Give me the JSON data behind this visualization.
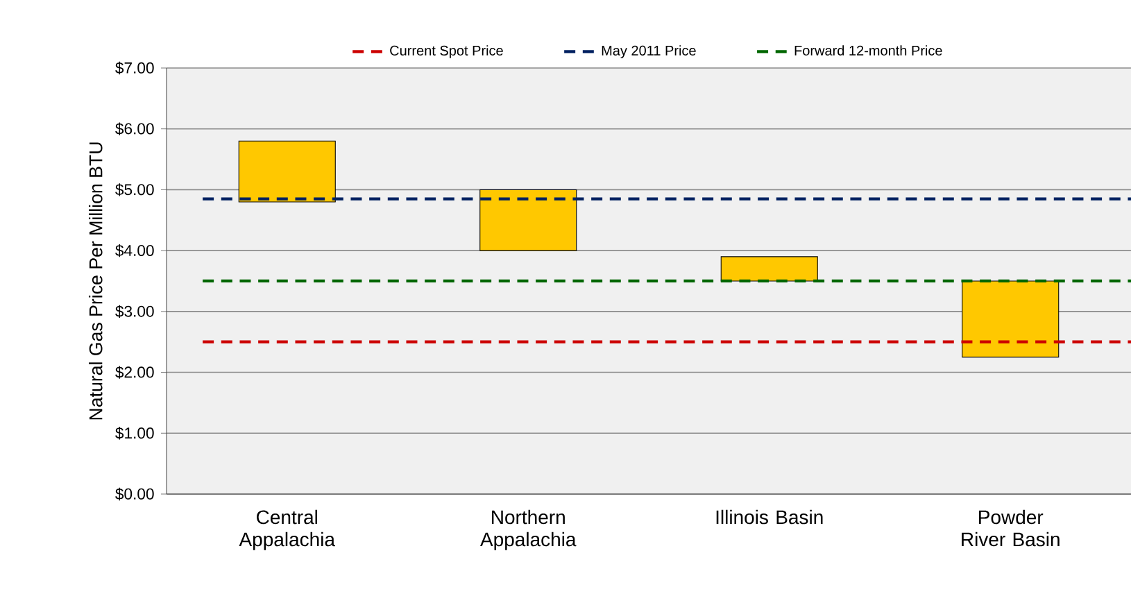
{
  "chart_data": {
    "type": "bar",
    "ylabel": "Natural Gas Price Per Million BTU",
    "categories": [
      "Central Appalachia",
      "Northern Appalachia",
      "Illinois Basin",
      "Powder River Basin"
    ],
    "base": [
      4.8,
      4.0,
      3.5,
      2.25
    ],
    "values": [
      1.0,
      1.0,
      0.4,
      1.25
    ],
    "color": "#ffc800",
    "ylim": [
      0,
      7
    ],
    "yticks": [
      {
        "value": 0,
        "label": "$0.00"
      },
      {
        "value": 1,
        "label": "$1.00"
      },
      {
        "value": 2,
        "label": "$2.00"
      },
      {
        "value": 3,
        "label": "$3.00"
      },
      {
        "value": 4,
        "label": "$4.00"
      },
      {
        "value": 5,
        "label": "$5.00"
      },
      {
        "value": 6,
        "label": "$6.00"
      },
      {
        "value": 7,
        "label": "$7.00"
      }
    ],
    "grid": "y",
    "legend": "top",
    "ref_lines": [
      {
        "axis": "y",
        "value": 2.5,
        "label": "Current Spot Price",
        "color": "#cc0000",
        "line_style": "dashed"
      },
      {
        "axis": "y",
        "value": 4.85,
        "label": "May 2011 Price",
        "color": "#002060",
        "line_style": "dashed"
      },
      {
        "axis": "y",
        "value": 3.5,
        "label": "Forward 12-month Price",
        "color": "#006600",
        "line_style": "dashed"
      }
    ]
  }
}
